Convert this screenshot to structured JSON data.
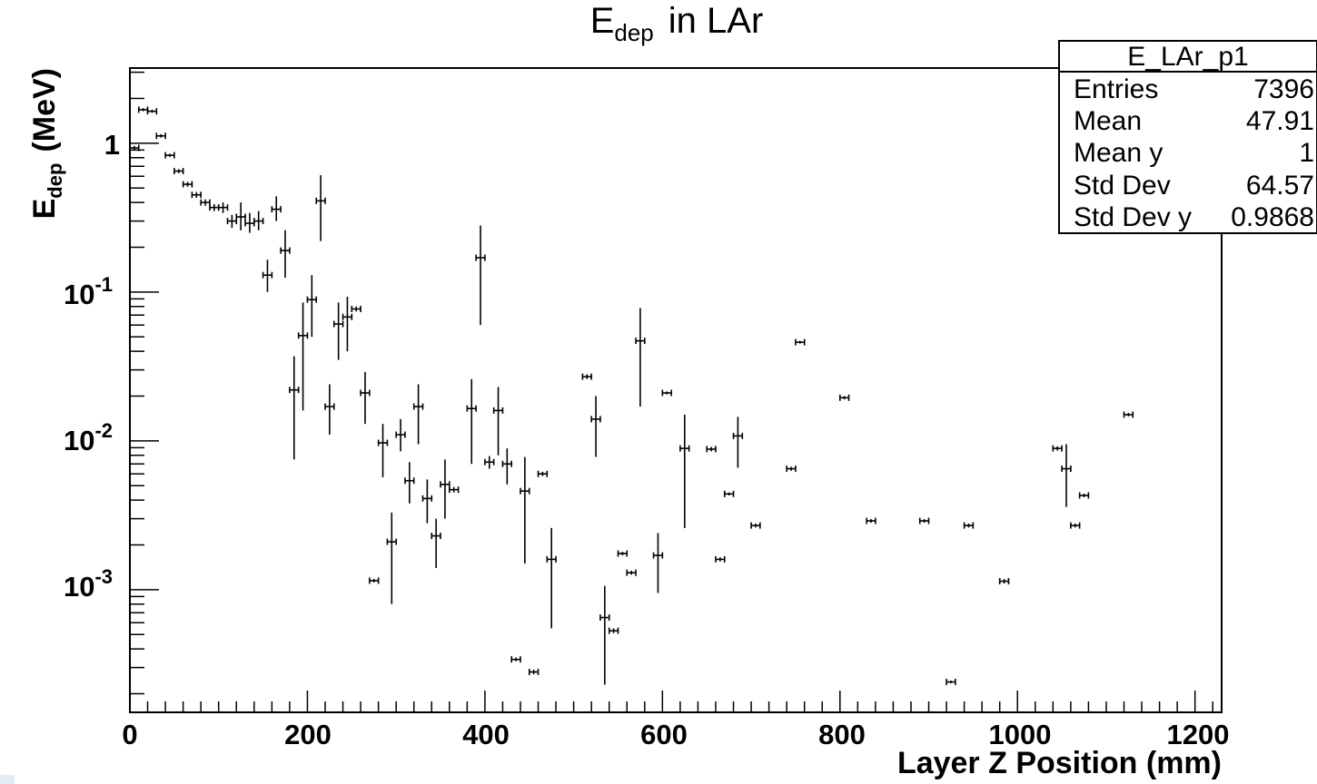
{
  "chart_data": {
    "type": "scatter",
    "title_main": "E",
    "title_sub": "dep",
    "title_rest": "in LAr",
    "xlabel": "Layer Z Position (mm)",
    "ylabel_main": "E",
    "ylabel_sub": "dep",
    "ylabel_rest": "(MeV)",
    "xlim": [
      0,
      1230
    ],
    "ylim": [
      0.00015,
      3.2
    ],
    "log_y": true,
    "grid": false,
    "x_ticks": [
      "0",
      "200",
      "400",
      "600",
      "800",
      "1000",
      "1200"
    ],
    "y_ticks": [
      {
        "base": "",
        "exp": "",
        "text": "1"
      },
      {
        "base": "10",
        "exp": "-1"
      },
      {
        "base": "10",
        "exp": "-2"
      },
      {
        "base": "10",
        "exp": "-3"
      }
    ],
    "stats": {
      "title": "E_LAr_p1",
      "rows": [
        {
          "label": "Entries",
          "value": "7396"
        },
        {
          "label": "Mean",
          "value": "47.91"
        },
        {
          "label": "Mean y",
          "value": "1"
        },
        {
          "label": "Std Dev",
          "value": "64.57"
        },
        {
          "label": "Std Dev y",
          "value": "0.9868"
        }
      ]
    },
    "x_halfwidth": 5,
    "points": [
      [
        5,
        0.93,
        0.9,
        0.96
      ],
      [
        15,
        1.68,
        1.64,
        1.72
      ],
      [
        25,
        1.64,
        1.6,
        1.68
      ],
      [
        35,
        1.12,
        1.09,
        1.15
      ],
      [
        45,
        0.83,
        0.81,
        0.85
      ],
      [
        55,
        0.65,
        0.63,
        0.67
      ],
      [
        65,
        0.53,
        0.51,
        0.55
      ],
      [
        75,
        0.45,
        0.43,
        0.47
      ],
      [
        85,
        0.4,
        0.38,
        0.42
      ],
      [
        95,
        0.37,
        0.35,
        0.39
      ],
      [
        105,
        0.37,
        0.34,
        0.4
      ],
      [
        115,
        0.3,
        0.27,
        0.33
      ],
      [
        125,
        0.32,
        0.26,
        0.4
      ],
      [
        135,
        0.29,
        0.25,
        0.34
      ],
      [
        145,
        0.3,
        0.26,
        0.35
      ],
      [
        155,
        0.13,
        0.1,
        0.165
      ],
      [
        165,
        0.36,
        0.3,
        0.44
      ],
      [
        175,
        0.19,
        0.125,
        0.26
      ],
      [
        185,
        0.022,
        0.0075,
        0.037
      ],
      [
        195,
        0.051,
        0.016,
        0.085
      ],
      [
        205,
        0.089,
        0.05,
        0.13
      ],
      [
        215,
        0.41,
        0.22,
        0.61
      ],
      [
        225,
        0.017,
        0.011,
        0.024
      ],
      [
        235,
        0.061,
        0.035,
        0.085
      ],
      [
        245,
        0.068,
        0.04,
        0.093
      ],
      [
        255,
        0.077,
        0.074,
        0.08
      ],
      [
        265,
        0.021,
        0.013,
        0.029
      ],
      [
        275,
        0.00115,
        0.00112,
        0.00118
      ],
      [
        285,
        0.0097,
        0.0057,
        0.013
      ],
      [
        295,
        0.0021,
        0.0008,
        0.0033
      ],
      [
        305,
        0.011,
        0.0085,
        0.014
      ],
      [
        315,
        0.0054,
        0.0038,
        0.0072
      ],
      [
        325,
        0.017,
        0.0095,
        0.024
      ],
      [
        335,
        0.0041,
        0.0028,
        0.0055
      ],
      [
        345,
        0.0023,
        0.0014,
        0.003
      ],
      [
        355,
        0.0051,
        0.003,
        0.0075
      ],
      [
        365,
        0.0047,
        0.0045,
        0.0049
      ],
      [
        385,
        0.0165,
        0.007,
        0.026
      ],
      [
        395,
        0.17,
        0.06,
        0.28
      ],
      [
        405,
        0.0072,
        0.0065,
        0.0079
      ],
      [
        415,
        0.016,
        0.008,
        0.023
      ],
      [
        425,
        0.007,
        0.0051,
        0.0089
      ],
      [
        435,
        0.00034,
        0.00033,
        0.00035
      ],
      [
        445,
        0.0046,
        0.0015,
        0.0078
      ],
      [
        455,
        0.00028,
        0.00027,
        0.00029
      ],
      [
        465,
        0.006,
        0.0058,
        0.0062
      ],
      [
        475,
        0.0016,
        0.00055,
        0.0026
      ],
      [
        515,
        0.027,
        0.026,
        0.028
      ],
      [
        525,
        0.014,
        0.0078,
        0.02
      ],
      [
        535,
        0.00065,
        0.00023,
        0.00106
      ],
      [
        545,
        0.00053,
        0.00051,
        0.00055
      ],
      [
        555,
        0.00175,
        0.0017,
        0.0018
      ],
      [
        565,
        0.0013,
        0.00126,
        0.00134
      ],
      [
        575,
        0.047,
        0.017,
        0.078
      ],
      [
        595,
        0.0017,
        0.00095,
        0.0024
      ],
      [
        605,
        0.021,
        0.0205,
        0.0215
      ],
      [
        625,
        0.0089,
        0.0026,
        0.015
      ],
      [
        655,
        0.0088,
        0.0085,
        0.0091
      ],
      [
        665,
        0.0016,
        0.00155,
        0.00165
      ],
      [
        675,
        0.0044,
        0.0043,
        0.0045
      ],
      [
        685,
        0.0108,
        0.0066,
        0.0145
      ],
      [
        705,
        0.0027,
        0.00262,
        0.00278
      ],
      [
        745,
        0.0065,
        0.0063,
        0.0067
      ],
      [
        755,
        0.046,
        0.045,
        0.047
      ],
      [
        805,
        0.0195,
        0.019,
        0.02
      ],
      [
        835,
        0.0029,
        0.00282,
        0.00298
      ],
      [
        895,
        0.0029,
        0.00282,
        0.00298
      ],
      [
        925,
        0.00024,
        0.000235,
        0.000245
      ],
      [
        945,
        0.0027,
        0.00262,
        0.00278
      ],
      [
        985,
        0.00114,
        0.0011,
        0.00118
      ],
      [
        1045,
        0.0089,
        0.0086,
        0.0092
      ],
      [
        1055,
        0.0065,
        0.0036,
        0.0095
      ],
      [
        1065,
        0.0027,
        0.00262,
        0.00278
      ],
      [
        1075,
        0.0043,
        0.00418,
        0.00442
      ],
      [
        1125,
        0.015,
        0.0146,
        0.0154
      ]
    ]
  }
}
